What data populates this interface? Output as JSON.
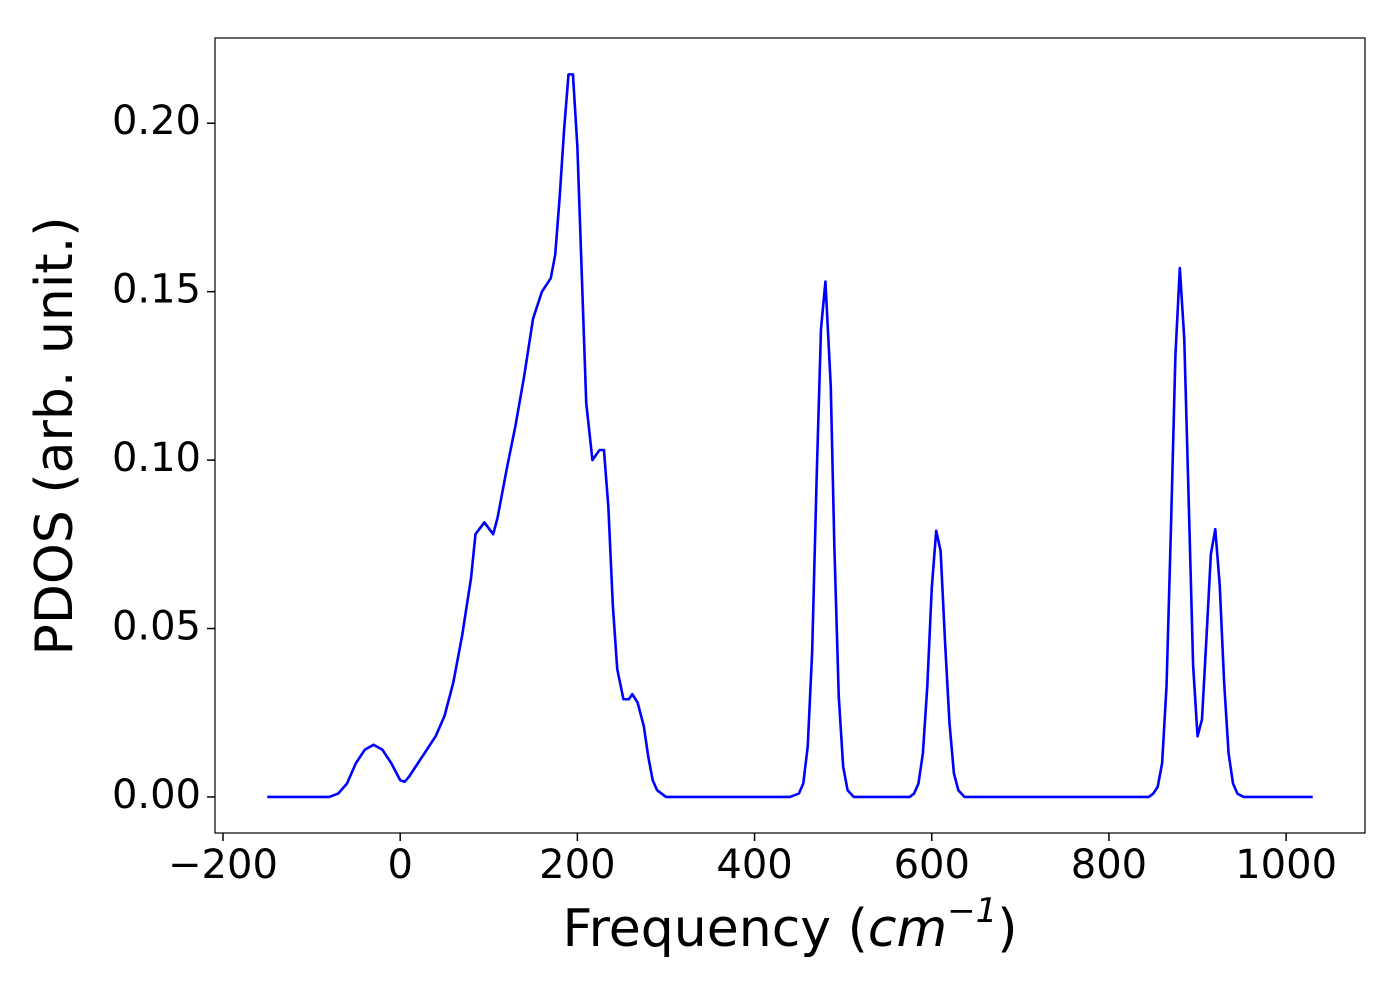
{
  "chart_data": {
    "type": "line",
    "xlabel": {
      "prefix": "Frequency (",
      "unit": "cm",
      "exponent": "−1",
      "suffix": ")"
    },
    "ylabel": "PDOS (arb. unit.)",
    "x": [
      -150,
      -80,
      -70,
      -60,
      -50,
      -40,
      -30,
      -20,
      -10,
      0,
      5,
      10,
      20,
      30,
      40,
      50,
      60,
      70,
      80,
      85,
      95,
      105,
      110,
      120,
      130,
      140,
      150,
      160,
      170,
      175,
      180,
      185,
      190,
      195,
      200,
      205,
      210,
      217,
      225,
      230,
      235,
      240,
      245,
      252,
      258,
      262,
      268,
      275,
      280,
      285,
      290,
      300,
      440,
      450,
      455,
      460,
      465,
      470,
      475,
      480,
      486,
      490,
      495,
      500,
      505,
      512,
      575,
      580,
      585,
      590,
      595,
      600,
      605,
      610,
      615,
      620,
      625,
      630,
      637,
      845,
      850,
      855,
      860,
      865,
      870,
      875,
      880,
      885,
      890,
      895,
      900,
      905,
      910,
      915,
      920,
      925,
      930,
      935,
      940,
      945,
      952,
      1030
    ],
    "series": [
      {
        "name": "PDOS",
        "color": "#0000ff",
        "values": [
          0,
          0,
          0.001,
          0.004,
          0.01,
          0.014,
          0.0155,
          0.014,
          0.01,
          0.005,
          0.0045,
          0.006,
          0.01,
          0.014,
          0.018,
          0.024,
          0.034,
          0.048,
          0.065,
          0.078,
          0.0815,
          0.078,
          0.083,
          0.097,
          0.11,
          0.125,
          0.142,
          0.15,
          0.154,
          0.161,
          0.178,
          0.198,
          0.2145,
          0.2145,
          0.193,
          0.155,
          0.117,
          0.1,
          0.103,
          0.103,
          0.086,
          0.057,
          0.038,
          0.029,
          0.029,
          0.0305,
          0.028,
          0.021,
          0.012,
          0.005,
          0.002,
          0,
          0,
          0.001,
          0.004,
          0.015,
          0.043,
          0.094,
          0.139,
          0.153,
          0.122,
          0.075,
          0.03,
          0.009,
          0.002,
          0,
          0,
          0.001,
          0.004,
          0.013,
          0.033,
          0.062,
          0.079,
          0.073,
          0.046,
          0.022,
          0.007,
          0.002,
          0,
          0,
          0.001,
          0.003,
          0.01,
          0.033,
          0.08,
          0.131,
          0.157,
          0.136,
          0.088,
          0.039,
          0.018,
          0.023,
          0.047,
          0.072,
          0.0795,
          0.063,
          0.034,
          0.013,
          0.004,
          0.001,
          0,
          0
        ]
      }
    ],
    "xlim": [
      -209,
      1089
    ],
    "ylim": [
      -0.0107,
      0.2253
    ],
    "xticks": [
      {
        "value": -200,
        "label": "−200"
      },
      0,
      200,
      400,
      600,
      800,
      1000
    ],
    "yticks": [
      {
        "value": 0,
        "label": "0.00"
      },
      {
        "value": 0.05,
        "label": "0.05"
      },
      {
        "value": 0.1,
        "label": "0.10"
      },
      {
        "value": 0.15,
        "label": "0.15"
      },
      {
        "value": 0.2,
        "label": "0.20"
      }
    ]
  }
}
